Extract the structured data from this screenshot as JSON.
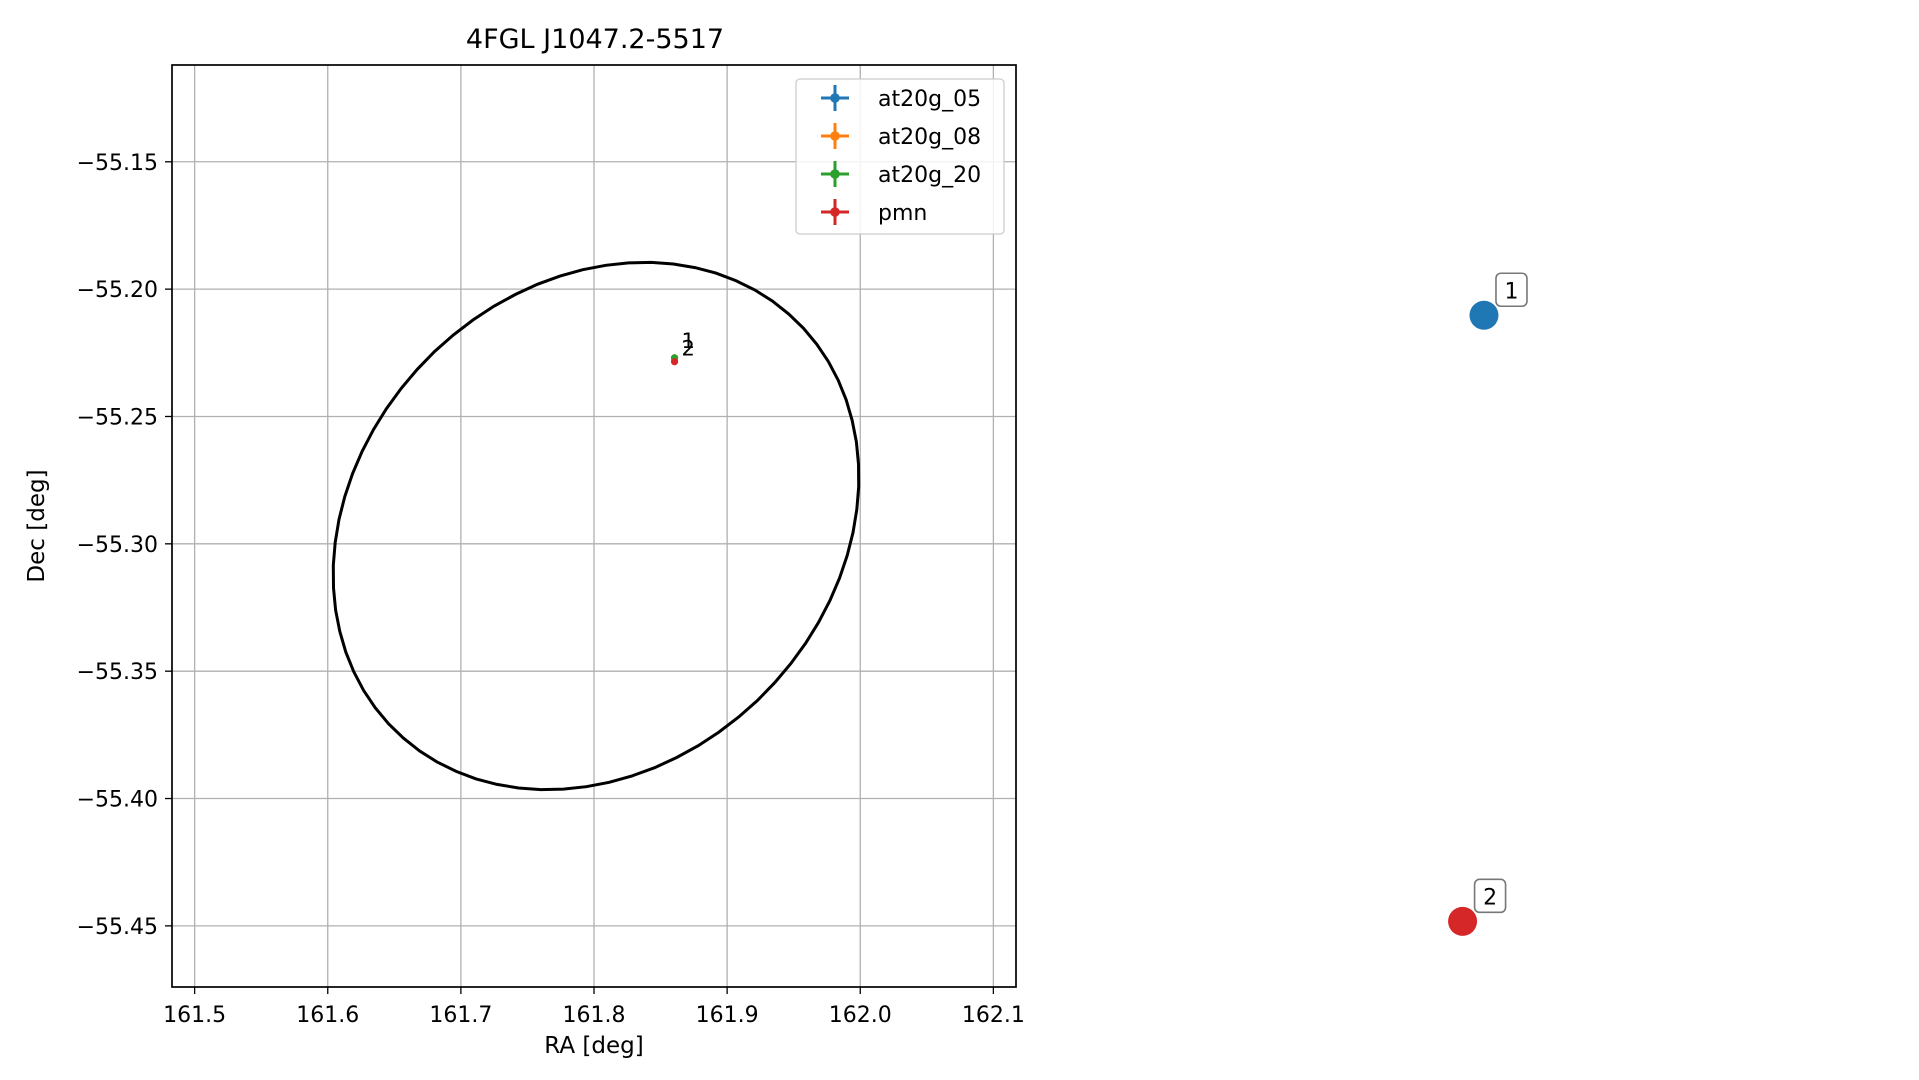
{
  "chart_data": [
    {
      "type": "scatter",
      "title": "4FGL J1047.2-5517",
      "xlabel": "RA [deg]",
      "ylabel": "Dec [deg]",
      "xlim": [
        161.483,
        162.117
      ],
      "ylim": [
        -55.474,
        -55.112
      ],
      "xticks": [
        161.5,
        161.6,
        161.7,
        161.8,
        161.9,
        162.0,
        162.1
      ],
      "xtick_labels": [
        "161.5",
        "161.6",
        "161.7",
        "161.8",
        "161.9",
        "162.0",
        "162.1"
      ],
      "yticks": [
        -55.15,
        -55.2,
        -55.25,
        -55.3,
        -55.35,
        -55.4,
        -55.45
      ],
      "ytick_labels": [
        "−55.15",
        "−55.20",
        "−55.25",
        "−55.30",
        "−55.35",
        "−55.40",
        "−55.45"
      ],
      "grid": true,
      "legend_position": "upper-right",
      "series": [
        {
          "name": "at20g_05",
          "color": "#1f77b4",
          "points": [
            {
              "x": 161.8605,
              "y": -55.227
            }
          ]
        },
        {
          "name": "at20g_08",
          "color": "#ff7f0e",
          "points": [
            {
              "x": 161.8605,
              "y": -55.227
            }
          ]
        },
        {
          "name": "at20g_20",
          "color": "#2ca02c",
          "points": [
            {
              "x": 161.8605,
              "y": -55.227
            }
          ]
        },
        {
          "name": "pmn",
          "color": "#d62728",
          "points": [
            {
              "x": 161.8605,
              "y": -55.2285
            }
          ]
        }
      ],
      "point_labels": [
        {
          "text": "1",
          "x": 161.8605,
          "y": -55.227
        },
        {
          "text": "2",
          "x": 161.8605,
          "y": -55.2285
        }
      ],
      "ellipse": {
        "color": "#000000",
        "center": {
          "x": 161.8015,
          "y": -55.293
        },
        "semi_major_deg": 0.1185,
        "semi_minor_deg": 0.0965,
        "position_angle_deg": 57
      }
    },
    {
      "type": "scatter",
      "title": "",
      "axes_visible": false,
      "xlim": [
        0,
        1
      ],
      "ylim": [
        0,
        1
      ],
      "points": [
        {
          "label": "1",
          "x": 0.513,
          "y": 0.805,
          "color": "#1f77b4"
        },
        {
          "label": "2",
          "x": 0.482,
          "y": 0.167,
          "color": "#d62728"
        }
      ]
    }
  ]
}
